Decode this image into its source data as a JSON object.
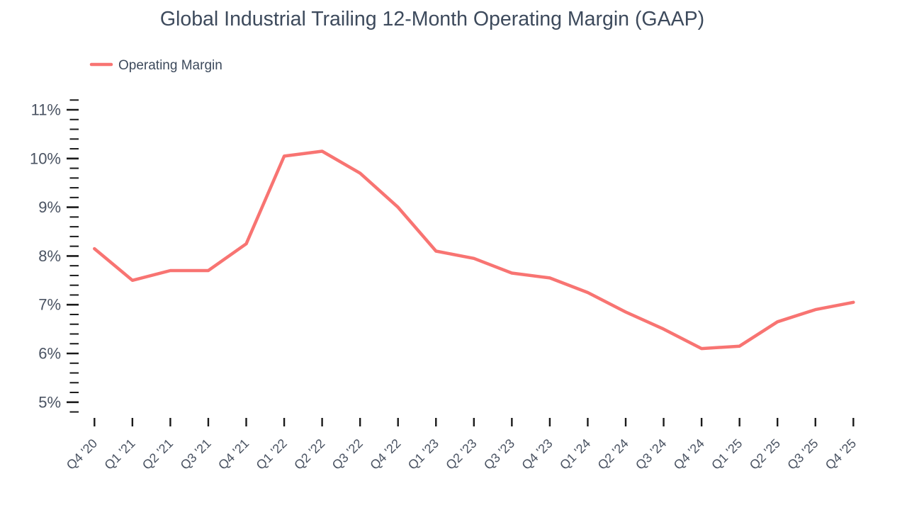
{
  "chart_data": {
    "type": "line",
    "title": "Global Industrial Trailing 12-Month Operating Margin (GAAP)",
    "categories": [
      "Q4 '20",
      "Q1 '21",
      "Q2 '21",
      "Q3 '21",
      "Q4 '21",
      "Q1 '22",
      "Q2 '22",
      "Q3 '22",
      "Q4 '22",
      "Q1 '23",
      "Q2 '23",
      "Q3 '23",
      "Q4 '23",
      "Q1 '24",
      "Q2 '24",
      "Q3 '24",
      "Q4 '24",
      "Q1 '25",
      "Q2 '25",
      "Q3 '25",
      "Q4 '25"
    ],
    "series": [
      {
        "name": "Operating Margin",
        "color": "#F87472",
        "values": [
          8.15,
          7.5,
          7.7,
          7.7,
          8.25,
          10.05,
          10.15,
          9.7,
          9.0,
          8.1,
          7.95,
          7.65,
          7.55,
          7.25,
          6.85,
          6.5,
          6.1,
          6.15,
          6.65,
          6.9,
          7.05
        ]
      }
    ],
    "xlabel": "",
    "ylabel": "",
    "ylim": [
      4.8,
      11.2
    ],
    "y_major_ticks": [
      5,
      6,
      7,
      8,
      9,
      10,
      11
    ],
    "y_tick_labels": [
      "5%",
      "6%",
      "7%",
      "8%",
      "9%",
      "10%",
      "11%"
    ],
    "y_minor_step": 0.2,
    "y_unit_suffix": "%",
    "grid": false,
    "legend_position": "top-left",
    "x_label_rotation": -45
  },
  "colors": {
    "accent_line": "#F87472",
    "title_text": "#3D4A5C",
    "axis_label_text": "#4A5362",
    "tick_mark": "#1A1A1A",
    "background": "#FFFFFF"
  }
}
